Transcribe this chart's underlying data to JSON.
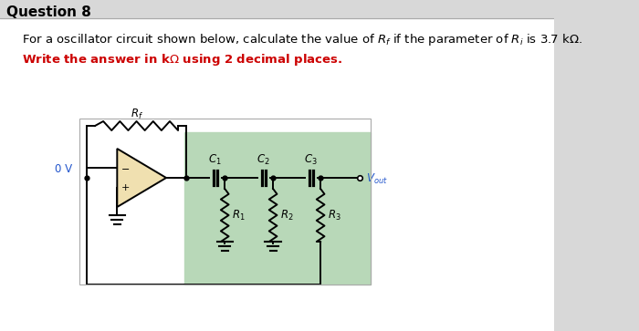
{
  "title": "Question 8",
  "line1": "For a oscillator circuit shown below, calculate the value of $R_f$ if the parameter of $R_i$ is 3.7 kΩ.",
  "line2": "Write the answer in kΩ using 2 decimal places.",
  "line2_color": "#cc0000",
  "circuit_bg": "#b8d8b8",
  "fig_bg": "#d8d8d8",
  "white_bg": "#ffffff",
  "opamp_fill": "#f0e0b0",
  "title_fontsize": 11,
  "text_fontsize": 9.5,
  "label_fontsize": 8.5,
  "wire_lw": 1.4
}
